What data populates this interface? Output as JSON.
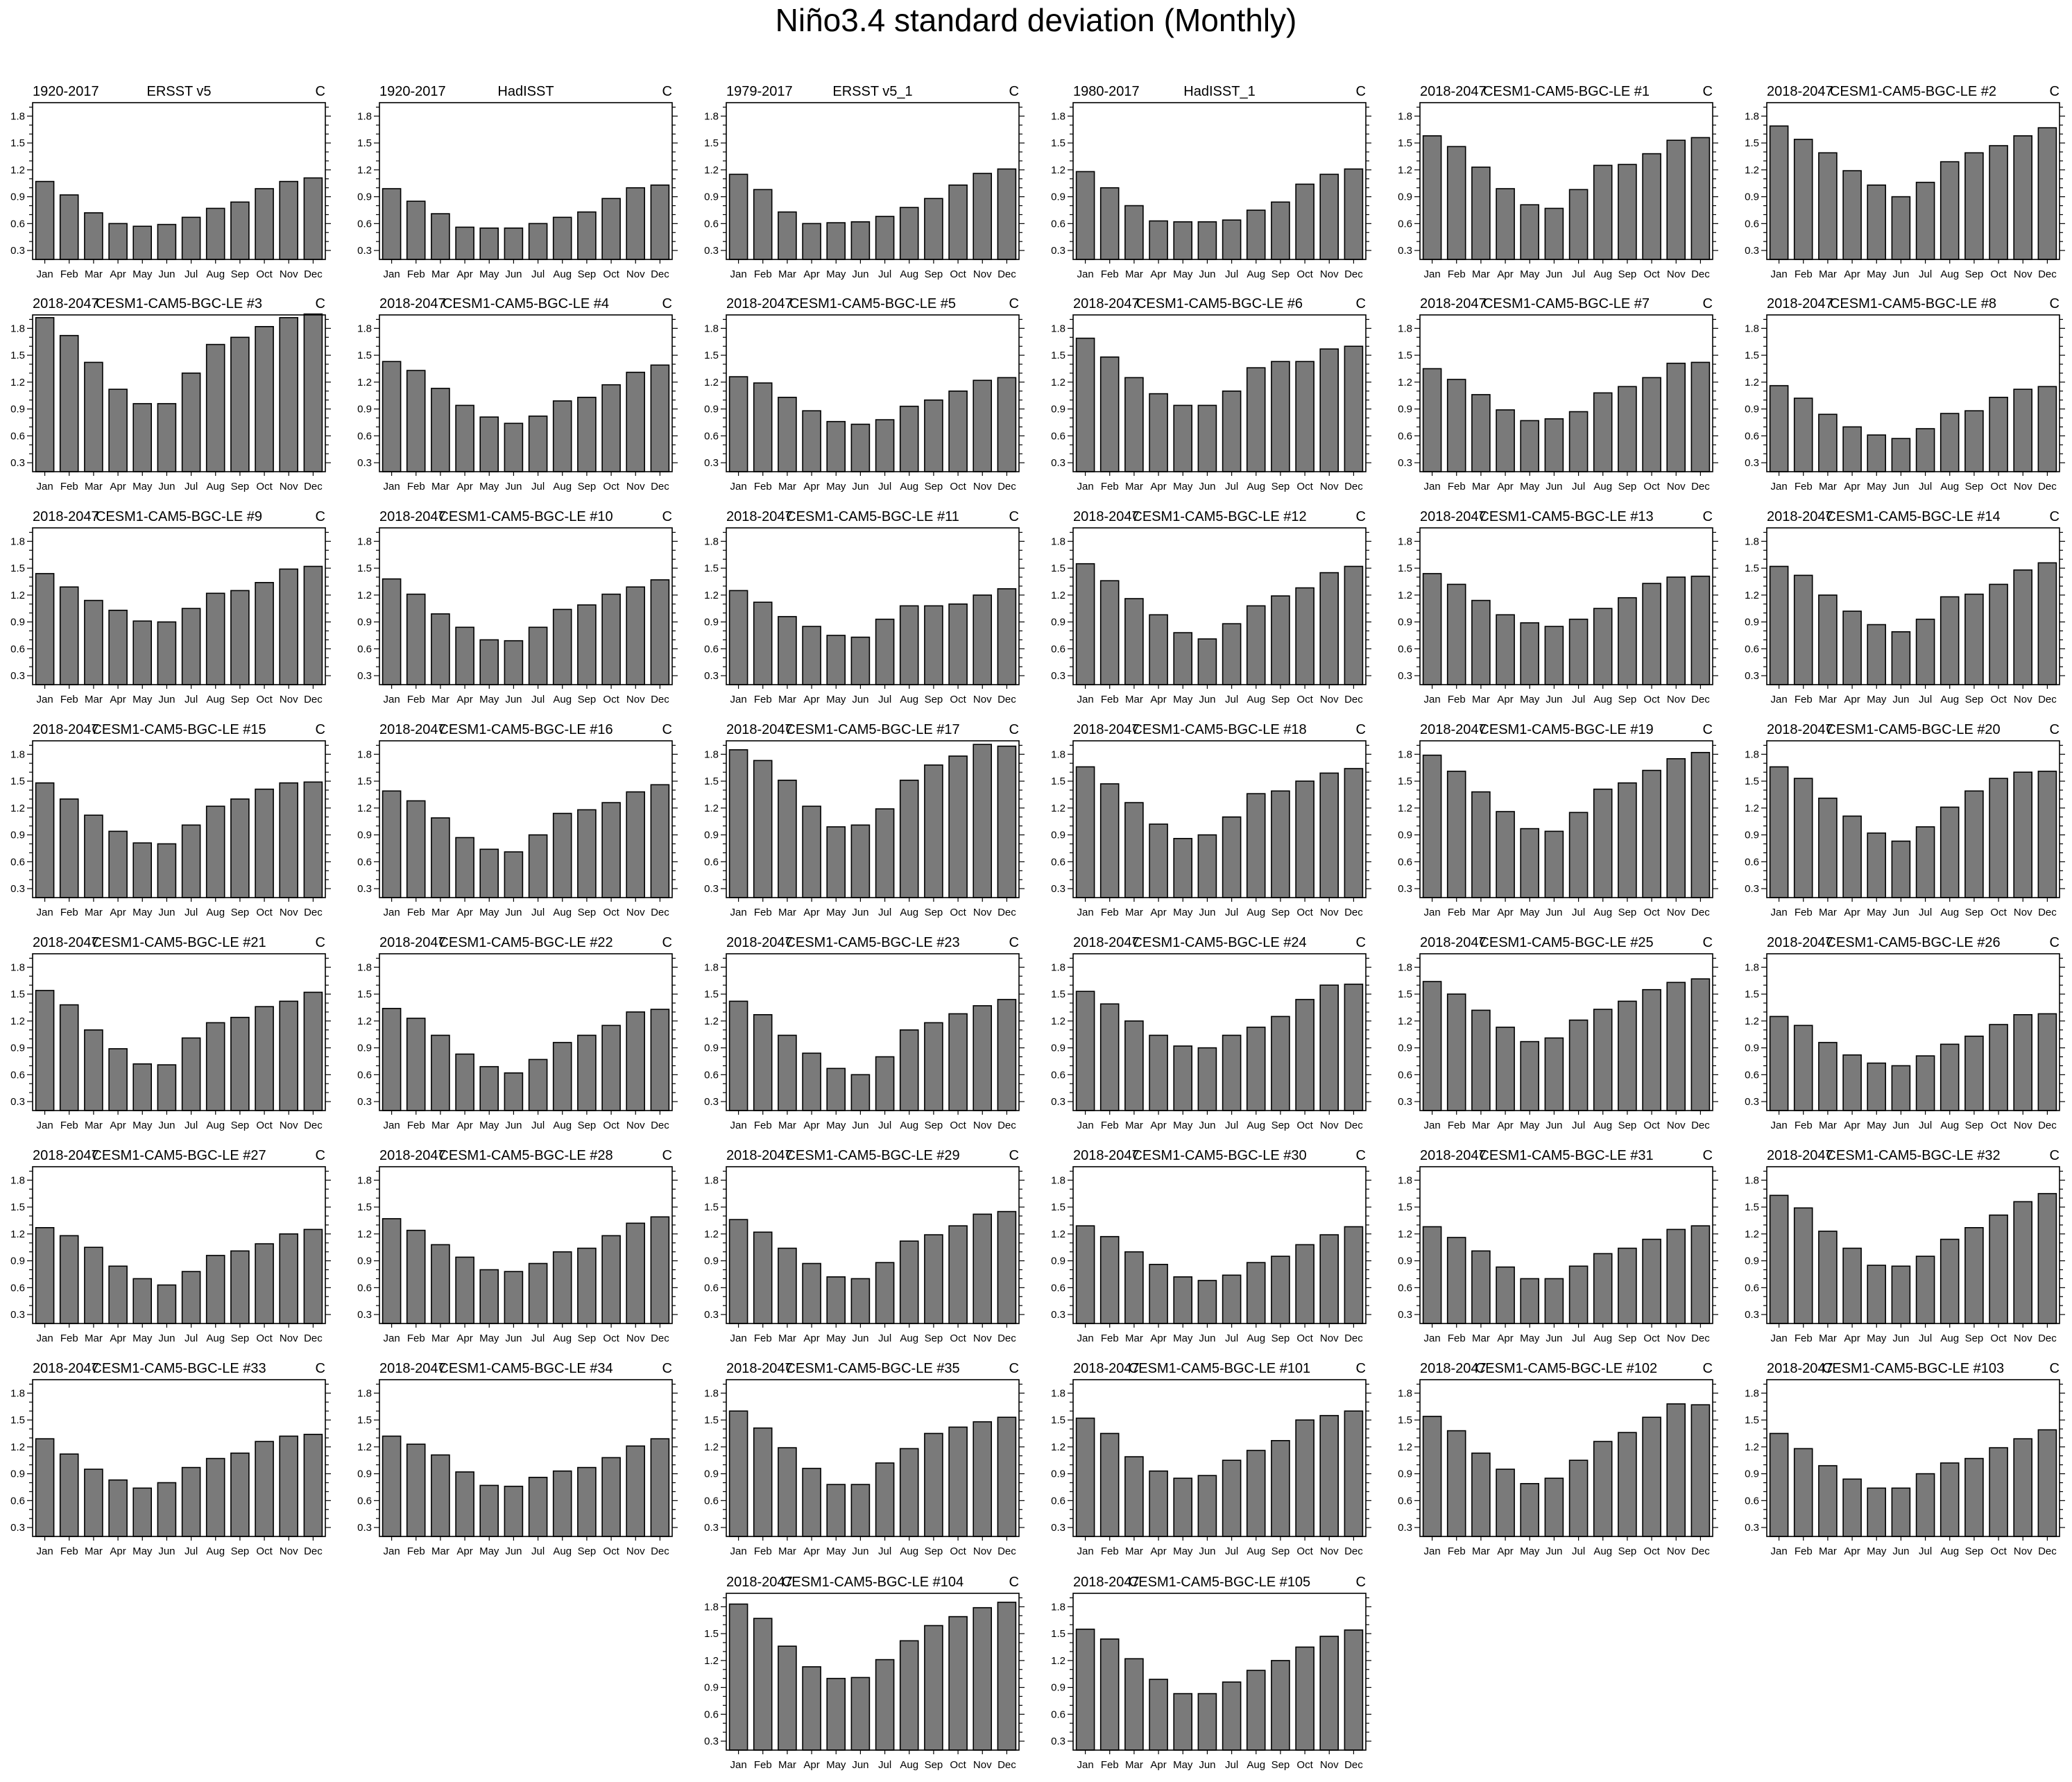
{
  "title": "Niño3.4 standard deviation (Monthly)",
  "colors": {
    "bar_fill": "#7a7a7a",
    "bar_stroke": "#000000",
    "frame": "#000000"
  },
  "months": [
    "Jan",
    "Feb",
    "Mar",
    "Apr",
    "May",
    "Jun",
    "Jul",
    "Aug",
    "Sep",
    "Oct",
    "Nov",
    "Dec"
  ],
  "ylim": [
    0.2,
    1.95
  ],
  "yticks": [
    "0.3",
    "0.6",
    "0.9",
    "1.2",
    "1.5",
    "1.8"
  ],
  "chart_data": [
    {
      "type": "bar",
      "left": "1920-2017",
      "center": "ERSST v5",
      "right": "C",
      "values": [
        1.07,
        0.92,
        0.72,
        0.6,
        0.57,
        0.59,
        0.67,
        0.77,
        0.84,
        0.99,
        1.07,
        1.11
      ]
    },
    {
      "type": "bar",
      "left": "1920-2017",
      "center": "HadISST",
      "right": "C",
      "values": [
        0.99,
        0.85,
        0.71,
        0.56,
        0.55,
        0.55,
        0.6,
        0.67,
        0.73,
        0.88,
        1.0,
        1.03
      ]
    },
    {
      "type": "bar",
      "left": "1979-2017",
      "center": "ERSST v5_1",
      "right": "C",
      "values": [
        1.15,
        0.98,
        0.73,
        0.6,
        0.61,
        0.62,
        0.68,
        0.78,
        0.88,
        1.03,
        1.16,
        1.21
      ]
    },
    {
      "type": "bar",
      "left": "1980-2017",
      "center": "HadISST_1",
      "right": "C",
      "values": [
        1.18,
        1.0,
        0.8,
        0.63,
        0.62,
        0.62,
        0.64,
        0.75,
        0.84,
        1.04,
        1.15,
        1.21
      ]
    },
    {
      "type": "bar",
      "left": "2018-2047",
      "center": "CESM1-CAM5-BGC-LE #1",
      "right": "C",
      "values": [
        1.58,
        1.46,
        1.23,
        0.99,
        0.81,
        0.77,
        0.98,
        1.25,
        1.26,
        1.38,
        1.53,
        1.56
      ]
    },
    {
      "type": "bar",
      "left": "2018-2047",
      "center": "CESM1-CAM5-BGC-LE #2",
      "right": "C",
      "values": [
        1.69,
        1.54,
        1.39,
        1.19,
        1.03,
        0.9,
        1.06,
        1.29,
        1.39,
        1.47,
        1.58,
        1.67
      ]
    },
    {
      "type": "bar",
      "left": "2018-2047",
      "center": "CESM1-CAM5-BGC-LE #3",
      "right": "C",
      "values": [
        1.92,
        1.72,
        1.42,
        1.12,
        0.96,
        0.96,
        1.3,
        1.62,
        1.7,
        1.82,
        1.92,
        1.96
      ]
    },
    {
      "type": "bar",
      "left": "2018-2047",
      "center": "CESM1-CAM5-BGC-LE #4",
      "right": "C",
      "values": [
        1.43,
        1.33,
        1.13,
        0.94,
        0.81,
        0.74,
        0.82,
        0.99,
        1.03,
        1.17,
        1.31,
        1.39
      ]
    },
    {
      "type": "bar",
      "left": "2018-2047",
      "center": "CESM1-CAM5-BGC-LE #5",
      "right": "C",
      "values": [
        1.26,
        1.19,
        1.03,
        0.88,
        0.76,
        0.73,
        0.78,
        0.93,
        1.0,
        1.1,
        1.22,
        1.25
      ]
    },
    {
      "type": "bar",
      "left": "2018-2047",
      "center": "CESM1-CAM5-BGC-LE #6",
      "right": "C",
      "values": [
        1.69,
        1.48,
        1.25,
        1.07,
        0.94,
        0.94,
        1.1,
        1.36,
        1.43,
        1.43,
        1.57,
        1.6
      ]
    },
    {
      "type": "bar",
      "left": "2018-2047",
      "center": "CESM1-CAM5-BGC-LE #7",
      "right": "C",
      "values": [
        1.35,
        1.23,
        1.06,
        0.89,
        0.77,
        0.79,
        0.87,
        1.08,
        1.15,
        1.25,
        1.41,
        1.42
      ]
    },
    {
      "type": "bar",
      "left": "2018-2047",
      "center": "CESM1-CAM5-BGC-LE #8",
      "right": "C",
      "values": [
        1.16,
        1.02,
        0.84,
        0.7,
        0.61,
        0.57,
        0.68,
        0.85,
        0.88,
        1.03,
        1.12,
        1.15
      ]
    },
    {
      "type": "bar",
      "left": "2018-2047",
      "center": "CESM1-CAM5-BGC-LE #9",
      "right": "C",
      "values": [
        1.44,
        1.29,
        1.14,
        1.03,
        0.91,
        0.9,
        1.05,
        1.22,
        1.25,
        1.34,
        1.49,
        1.52
      ]
    },
    {
      "type": "bar",
      "left": "2018-2047",
      "center": "CESM1-CAM5-BGC-LE #10",
      "right": "C",
      "values": [
        1.38,
        1.21,
        0.99,
        0.84,
        0.7,
        0.69,
        0.84,
        1.04,
        1.09,
        1.21,
        1.29,
        1.37
      ]
    },
    {
      "type": "bar",
      "left": "2018-2047",
      "center": "CESM1-CAM5-BGC-LE #11",
      "right": "C",
      "values": [
        1.25,
        1.12,
        0.96,
        0.85,
        0.75,
        0.73,
        0.93,
        1.08,
        1.08,
        1.1,
        1.2,
        1.27
      ]
    },
    {
      "type": "bar",
      "left": "2018-2047",
      "center": "CESM1-CAM5-BGC-LE #12",
      "right": "C",
      "values": [
        1.55,
        1.36,
        1.16,
        0.98,
        0.78,
        0.71,
        0.88,
        1.08,
        1.19,
        1.28,
        1.45,
        1.52
      ]
    },
    {
      "type": "bar",
      "left": "2018-2047",
      "center": "CESM1-CAM5-BGC-LE #13",
      "right": "C",
      "values": [
        1.44,
        1.32,
        1.14,
        0.98,
        0.89,
        0.85,
        0.93,
        1.05,
        1.17,
        1.33,
        1.4,
        1.41
      ]
    },
    {
      "type": "bar",
      "left": "2018-2047",
      "center": "CESM1-CAM5-BGC-LE #14",
      "right": "C",
      "values": [
        1.52,
        1.42,
        1.2,
        1.02,
        0.87,
        0.79,
        0.93,
        1.18,
        1.21,
        1.32,
        1.48,
        1.56
      ]
    },
    {
      "type": "bar",
      "left": "2018-2047",
      "center": "CESM1-CAM5-BGC-LE #15",
      "right": "C",
      "values": [
        1.48,
        1.3,
        1.12,
        0.94,
        0.81,
        0.8,
        1.01,
        1.22,
        1.3,
        1.41,
        1.48,
        1.49
      ]
    },
    {
      "type": "bar",
      "left": "2018-2047",
      "center": "CESM1-CAM5-BGC-LE #16",
      "right": "C",
      "values": [
        1.39,
        1.28,
        1.09,
        0.87,
        0.74,
        0.71,
        0.9,
        1.14,
        1.18,
        1.26,
        1.38,
        1.46
      ]
    },
    {
      "type": "bar",
      "left": "2018-2047",
      "center": "CESM1-CAM5-BGC-LE #17",
      "right": "C",
      "values": [
        1.85,
        1.73,
        1.51,
        1.22,
        0.99,
        1.01,
        1.19,
        1.51,
        1.68,
        1.78,
        1.91,
        1.89
      ]
    },
    {
      "type": "bar",
      "left": "2018-2047",
      "center": "CESM1-CAM5-BGC-LE #18",
      "right": "C",
      "values": [
        1.66,
        1.47,
        1.26,
        1.02,
        0.86,
        0.9,
        1.1,
        1.36,
        1.39,
        1.5,
        1.59,
        1.64
      ]
    },
    {
      "type": "bar",
      "left": "2018-2047",
      "center": "CESM1-CAM5-BGC-LE #19",
      "right": "C",
      "values": [
        1.79,
        1.61,
        1.38,
        1.16,
        0.97,
        0.94,
        1.15,
        1.41,
        1.48,
        1.62,
        1.75,
        1.82
      ]
    },
    {
      "type": "bar",
      "left": "2018-2047",
      "center": "CESM1-CAM5-BGC-LE #20",
      "right": "C",
      "values": [
        1.66,
        1.53,
        1.31,
        1.11,
        0.92,
        0.83,
        0.99,
        1.21,
        1.39,
        1.53,
        1.6,
        1.61
      ]
    },
    {
      "type": "bar",
      "left": "2018-2047",
      "center": "CESM1-CAM5-BGC-LE #21",
      "right": "C",
      "values": [
        1.54,
        1.38,
        1.1,
        0.89,
        0.72,
        0.71,
        1.01,
        1.18,
        1.24,
        1.36,
        1.42,
        1.52
      ]
    },
    {
      "type": "bar",
      "left": "2018-2047",
      "center": "CESM1-CAM5-BGC-LE #22",
      "right": "C",
      "values": [
        1.34,
        1.23,
        1.04,
        0.83,
        0.69,
        0.62,
        0.77,
        0.96,
        1.04,
        1.15,
        1.3,
        1.33
      ]
    },
    {
      "type": "bar",
      "left": "2018-2047",
      "center": "CESM1-CAM5-BGC-LE #23",
      "right": "C",
      "values": [
        1.42,
        1.27,
        1.04,
        0.84,
        0.67,
        0.6,
        0.8,
        1.1,
        1.18,
        1.28,
        1.37,
        1.44
      ]
    },
    {
      "type": "bar",
      "left": "2018-2047",
      "center": "CESM1-CAM5-BGC-LE #24",
      "right": "C",
      "values": [
        1.53,
        1.39,
        1.2,
        1.04,
        0.92,
        0.9,
        1.04,
        1.13,
        1.25,
        1.44,
        1.6,
        1.61
      ]
    },
    {
      "type": "bar",
      "left": "2018-2047",
      "center": "CESM1-CAM5-BGC-LE #25",
      "right": "C",
      "values": [
        1.64,
        1.5,
        1.32,
        1.13,
        0.97,
        1.01,
        1.21,
        1.33,
        1.42,
        1.55,
        1.63,
        1.67
      ]
    },
    {
      "type": "bar",
      "left": "2018-2047",
      "center": "CESM1-CAM5-BGC-LE #26",
      "right": "C",
      "values": [
        1.25,
        1.15,
        0.96,
        0.82,
        0.73,
        0.7,
        0.81,
        0.94,
        1.03,
        1.16,
        1.27,
        1.28
      ]
    },
    {
      "type": "bar",
      "left": "2018-2047",
      "center": "CESM1-CAM5-BGC-LE #27",
      "right": "C",
      "values": [
        1.27,
        1.18,
        1.05,
        0.84,
        0.7,
        0.63,
        0.78,
        0.96,
        1.01,
        1.09,
        1.2,
        1.25
      ]
    },
    {
      "type": "bar",
      "left": "2018-2047",
      "center": "CESM1-CAM5-BGC-LE #28",
      "right": "C",
      "values": [
        1.37,
        1.24,
        1.08,
        0.94,
        0.8,
        0.78,
        0.87,
        1.0,
        1.04,
        1.18,
        1.32,
        1.39
      ]
    },
    {
      "type": "bar",
      "left": "2018-2047",
      "center": "CESM1-CAM5-BGC-LE #29",
      "right": "C",
      "values": [
        1.36,
        1.22,
        1.04,
        0.87,
        0.72,
        0.7,
        0.88,
        1.12,
        1.19,
        1.29,
        1.42,
        1.45
      ]
    },
    {
      "type": "bar",
      "left": "2018-2047",
      "center": "CESM1-CAM5-BGC-LE #30",
      "right": "C",
      "values": [
        1.29,
        1.17,
        1.0,
        0.86,
        0.72,
        0.68,
        0.74,
        0.88,
        0.95,
        1.08,
        1.19,
        1.28
      ]
    },
    {
      "type": "bar",
      "left": "2018-2047",
      "center": "CESM1-CAM5-BGC-LE #31",
      "right": "C",
      "values": [
        1.28,
        1.16,
        1.01,
        0.83,
        0.7,
        0.7,
        0.84,
        0.98,
        1.04,
        1.14,
        1.25,
        1.29
      ]
    },
    {
      "type": "bar",
      "left": "2018-2047",
      "center": "CESM1-CAM5-BGC-LE #32",
      "right": "C",
      "values": [
        1.63,
        1.49,
        1.23,
        1.04,
        0.85,
        0.84,
        0.95,
        1.14,
        1.27,
        1.41,
        1.56,
        1.65
      ]
    },
    {
      "type": "bar",
      "left": "2018-2047",
      "center": "CESM1-CAM5-BGC-LE #33",
      "right": "C",
      "values": [
        1.29,
        1.12,
        0.95,
        0.83,
        0.74,
        0.8,
        0.97,
        1.07,
        1.13,
        1.26,
        1.32,
        1.34
      ]
    },
    {
      "type": "bar",
      "left": "2018-2047",
      "center": "CESM1-CAM5-BGC-LE #34",
      "right": "C",
      "values": [
        1.32,
        1.23,
        1.11,
        0.92,
        0.77,
        0.76,
        0.86,
        0.93,
        0.97,
        1.08,
        1.21,
        1.29
      ]
    },
    {
      "type": "bar",
      "left": "2018-2047",
      "center": "CESM1-CAM5-BGC-LE #35",
      "right": "C",
      "values": [
        1.6,
        1.41,
        1.19,
        0.96,
        0.78,
        0.78,
        1.02,
        1.18,
        1.35,
        1.42,
        1.48,
        1.53
      ]
    },
    {
      "type": "bar",
      "left": "2018-2047",
      "center": "CESM1-CAM5-BGC-LE #101",
      "right": "C",
      "values": [
        1.52,
        1.35,
        1.09,
        0.93,
        0.85,
        0.88,
        1.05,
        1.16,
        1.27,
        1.5,
        1.55,
        1.6
      ]
    },
    {
      "type": "bar",
      "left": "2018-2047",
      "center": "CESM1-CAM5-BGC-LE #102",
      "right": "C",
      "values": [
        1.54,
        1.38,
        1.13,
        0.95,
        0.79,
        0.85,
        1.05,
        1.26,
        1.36,
        1.53,
        1.68,
        1.67
      ]
    },
    {
      "type": "bar",
      "left": "2018-2047",
      "center": "CESM1-CAM5-BGC-LE #103",
      "right": "C",
      "values": [
        1.35,
        1.18,
        0.99,
        0.84,
        0.74,
        0.74,
        0.9,
        1.02,
        1.07,
        1.19,
        1.29,
        1.39
      ]
    },
    {
      "type": "bar",
      "left": "2018-2047",
      "center": "CESM1-CAM5-BGC-LE #104",
      "right": "C",
      "values": [
        1.83,
        1.67,
        1.36,
        1.13,
        1.0,
        1.01,
        1.21,
        1.42,
        1.59,
        1.69,
        1.79,
        1.85
      ]
    },
    {
      "type": "bar",
      "left": "2018-2047",
      "center": "CESM1-CAM5-BGC-LE #105",
      "right": "C",
      "values": [
        1.55,
        1.44,
        1.22,
        0.99,
        0.83,
        0.83,
        0.96,
        1.09,
        1.2,
        1.35,
        1.47,
        1.54
      ]
    }
  ]
}
